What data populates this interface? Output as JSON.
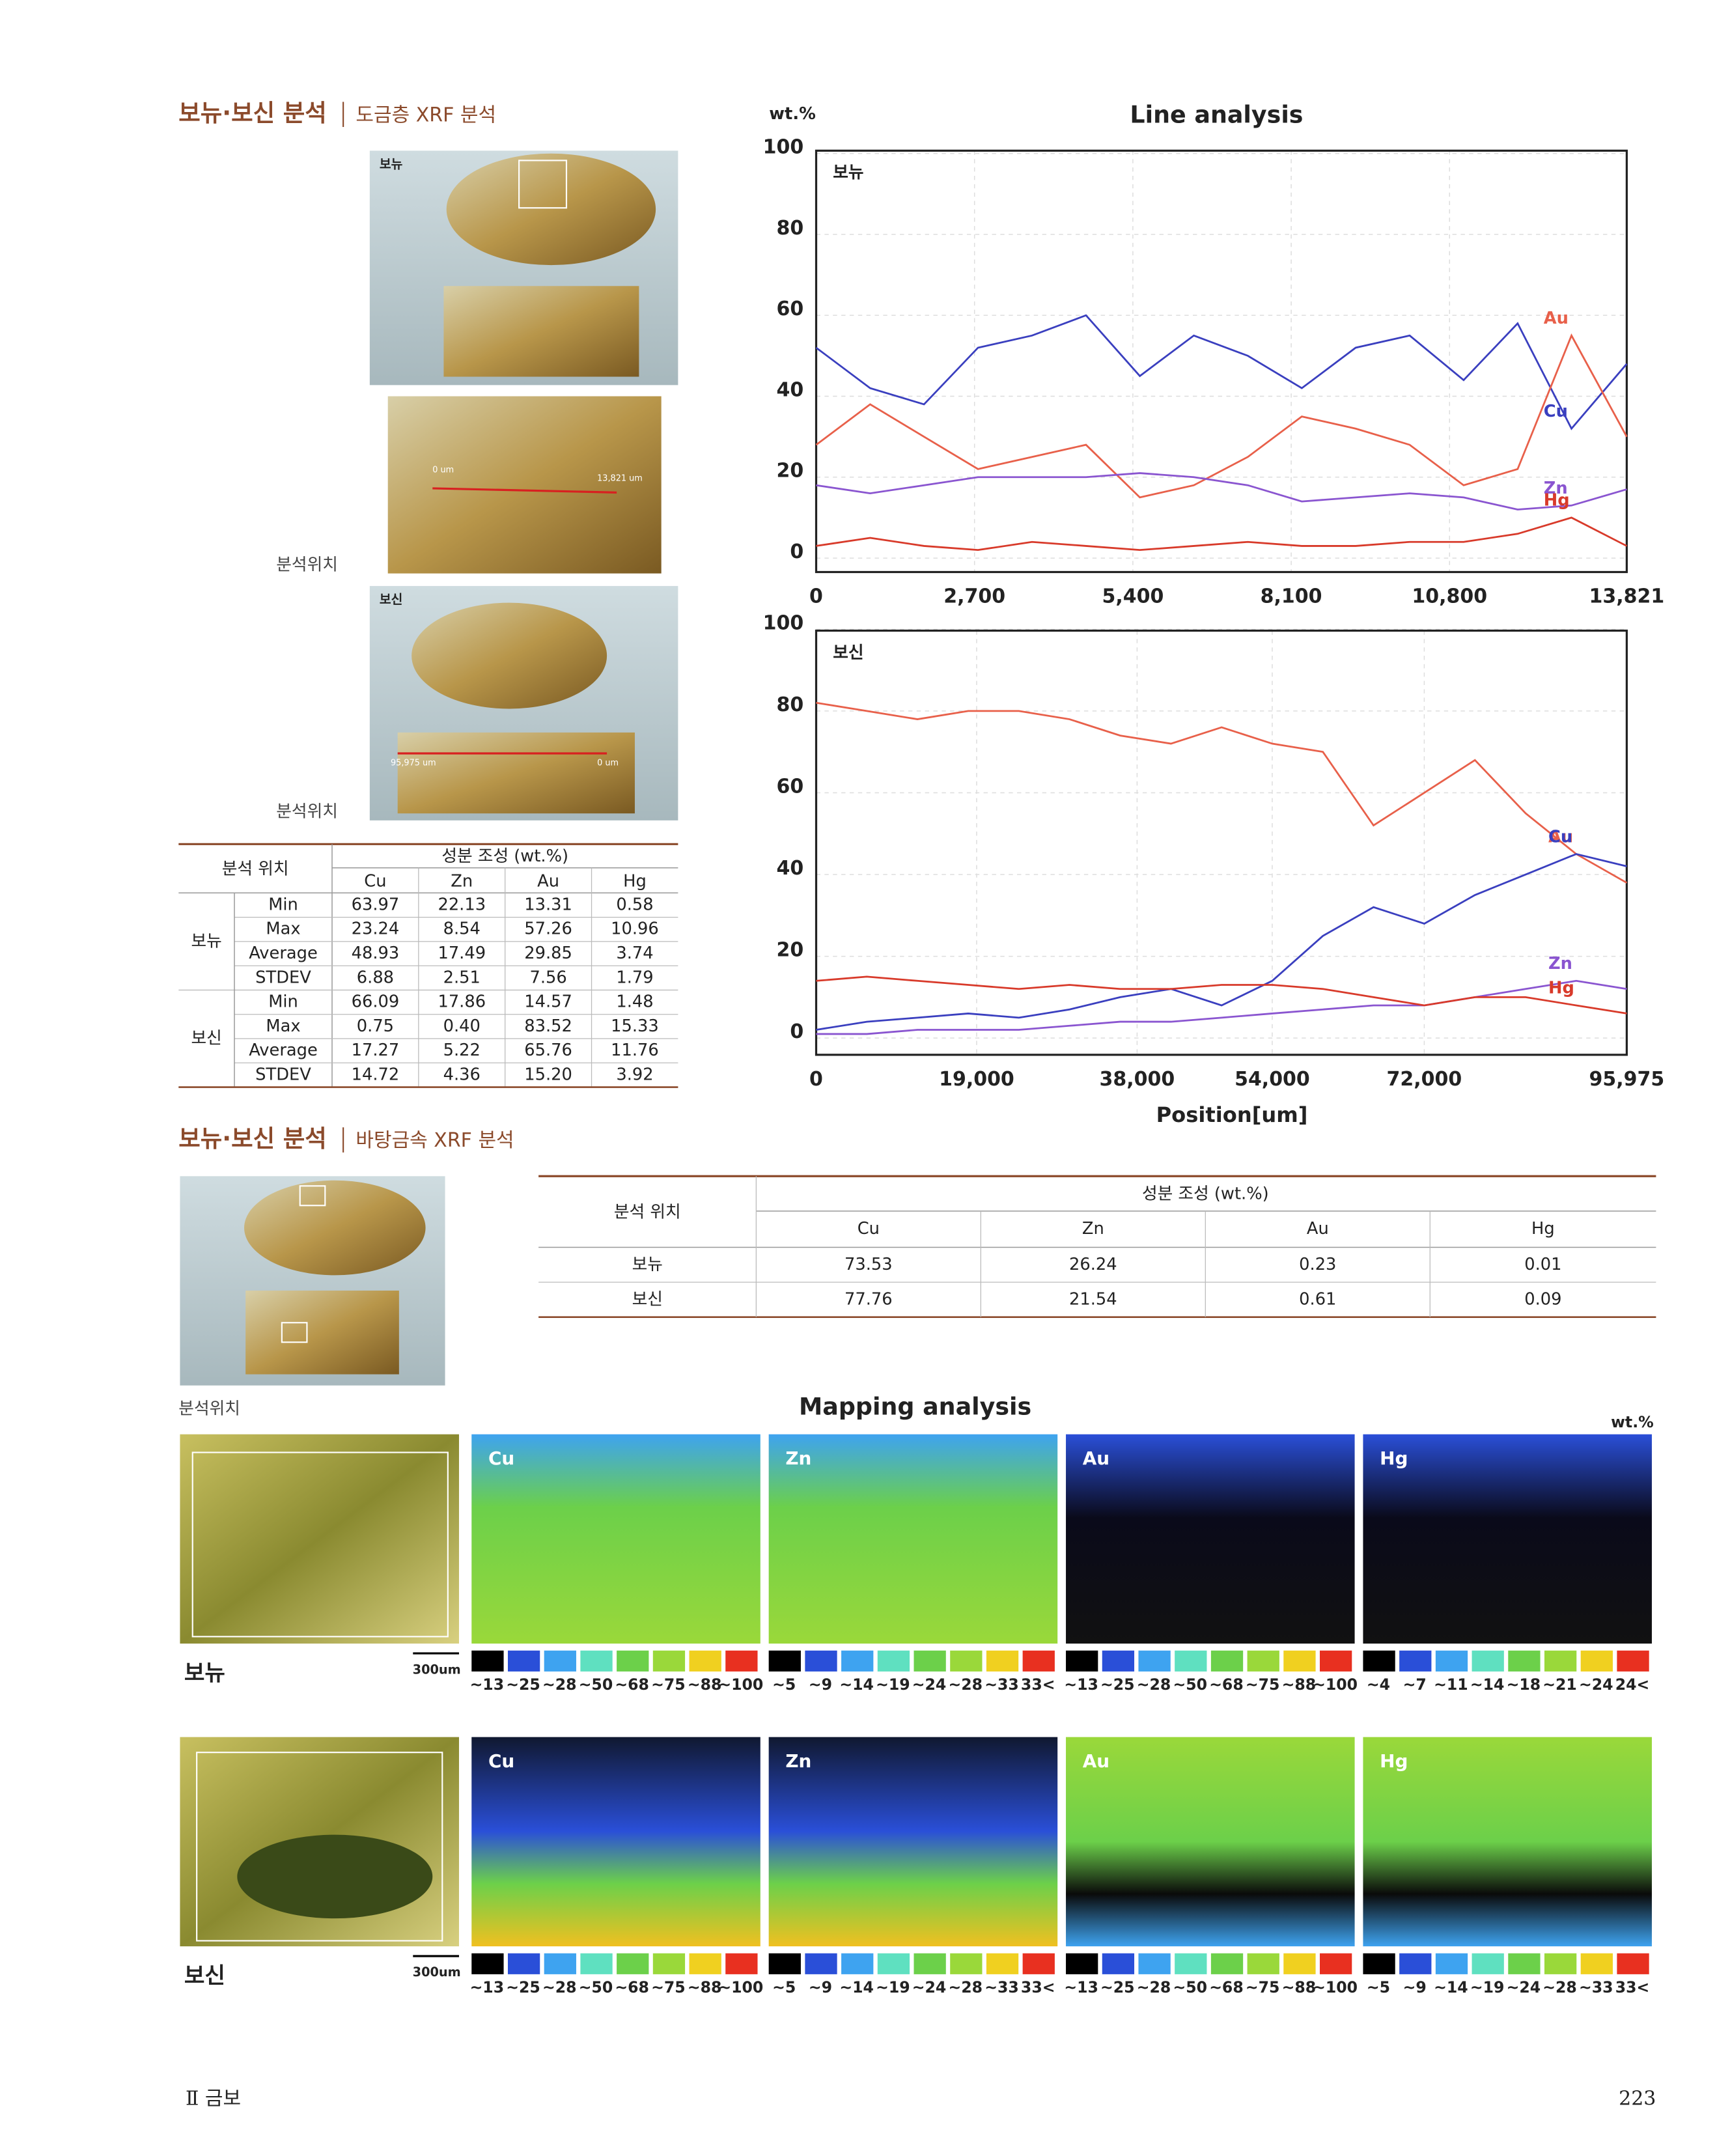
{
  "section1": {
    "title": "보뉴·보신 분석",
    "subtitle": "도금층 XRF 분석"
  },
  "photos": {
    "labels": [
      "보뉴",
      "보신"
    ],
    "position_label": "분석위치",
    "annotations": [
      "0 um",
      "13,821 um",
      "95,975 um",
      "0 um"
    ]
  },
  "table1": {
    "header": [
      "분석 위치",
      "성분 조성 (wt.%)"
    ],
    "columns": [
      "Cu",
      "Zn",
      "Au",
      "Hg"
    ],
    "groups": [
      {
        "name": "보뉴",
        "rows": [
          {
            "stat": "Min",
            "values": [
              "63.97",
              "22.13",
              "13.31",
              "0.58"
            ]
          },
          {
            "stat": "Max",
            "values": [
              "23.24",
              "8.54",
              "57.26",
              "10.96"
            ]
          },
          {
            "stat": "Average",
            "values": [
              "48.93",
              "17.49",
              "29.85",
              "3.74"
            ]
          },
          {
            "stat": "STDEV",
            "values": [
              "6.88",
              "2.51",
              "7.56",
              "1.79"
            ]
          }
        ]
      },
      {
        "name": "보신",
        "rows": [
          {
            "stat": "Min",
            "values": [
              "66.09",
              "17.86",
              "14.57",
              "1.48"
            ]
          },
          {
            "stat": "Max",
            "values": [
              "0.75",
              "0.40",
              "83.52",
              "15.33"
            ]
          },
          {
            "stat": "Average",
            "values": [
              "17.27",
              "5.22",
              "65.76",
              "11.76"
            ]
          },
          {
            "stat": "STDEV",
            "values": [
              "14.72",
              "4.36",
              "15.20",
              "3.92"
            ]
          }
        ]
      }
    ]
  },
  "section2": {
    "title": "보뉴·보신 분석",
    "subtitle": "바탕금속 XRF 분석",
    "position_label": "분석위치"
  },
  "table2": {
    "header": [
      "분석 위치",
      "성분 조성 (wt.%)"
    ],
    "columns": [
      "Cu",
      "Zn",
      "Au",
      "Hg"
    ],
    "rows": [
      [
        "보뉴",
        "73.53",
        "26.24",
        "0.23",
        "0.01"
      ],
      [
        "보신",
        "77.76",
        "21.54",
        "0.61",
        "0.09"
      ]
    ]
  },
  "chart_data": [
    {
      "type": "line",
      "title": "Line analysis",
      "y_label": "wt.%",
      "panel_label": "보뉴",
      "x": [
        0,
        920,
        1840,
        2760,
        3680,
        4600,
        5520,
        6440,
        7360,
        8280,
        9200,
        10120,
        11040,
        11960,
        12880,
        13821
      ],
      "xlim": [
        0,
        13821
      ],
      "xticks": [
        0,
        {
          "value": 2700,
          "label": "2,700"
        },
        {
          "value": 5400,
          "label": "5,400"
        },
        {
          "value": 8100,
          "label": "8,100"
        },
        {
          "value": 10800,
          "label": "10,800"
        },
        {
          "value": 13821,
          "label": "13,821"
        }
      ],
      "ylim": [
        0,
        100
      ],
      "yticks": [
        0,
        20,
        40,
        60,
        80,
        100
      ],
      "grid": true,
      "series": [
        {
          "name": "Cu",
          "color": "#3a3fbf",
          "values": [
            52,
            42,
            38,
            52,
            55,
            60,
            45,
            55,
            50,
            42,
            52,
            55,
            44,
            58,
            32,
            48
          ]
        },
        {
          "name": "Au",
          "color": "#e8604a",
          "values": [
            28,
            38,
            30,
            22,
            25,
            28,
            15,
            18,
            25,
            35,
            32,
            28,
            18,
            22,
            55,
            30
          ]
        },
        {
          "name": "Zn",
          "color": "#8a55d0",
          "values": [
            18,
            16,
            18,
            20,
            20,
            20,
            21,
            20,
            18,
            14,
            15,
            16,
            15,
            12,
            13,
            17
          ]
        },
        {
          "name": "Hg",
          "color": "#d83a2a",
          "values": [
            3,
            5,
            3,
            2,
            4,
            3,
            2,
            3,
            4,
            3,
            3,
            4,
            4,
            6,
            10,
            3
          ]
        }
      ]
    },
    {
      "type": "line",
      "panel_label": "보신",
      "x_label": "Position[um]",
      "x": [
        0,
        6000,
        12000,
        18000,
        24000,
        30000,
        36000,
        42000,
        48000,
        54000,
        60000,
        66000,
        72000,
        78000,
        84000,
        90000,
        95975
      ],
      "xlim": [
        0,
        95975
      ],
      "xticks": [
        0,
        {
          "value": 19000,
          "label": "19,000"
        },
        {
          "value": 38000,
          "label": "38,000"
        },
        {
          "value": 54000,
          "label": "54,000"
        },
        {
          "value": 72000,
          "label": "72,000"
        },
        {
          "value": 95975,
          "label": "95,975"
        }
      ],
      "ylim": [
        0,
        100
      ],
      "yticks": [
        0,
        20,
        40,
        60,
        80,
        100
      ],
      "grid": true,
      "series": [
        {
          "name": "Au",
          "color": "#e8604a",
          "values": [
            82,
            80,
            78,
            80,
            80,
            78,
            74,
            72,
            76,
            72,
            70,
            52,
            60,
            68,
            55,
            45,
            38
          ]
        },
        {
          "name": "Cu",
          "color": "#3a3fbf",
          "values": [
            2,
            4,
            5,
            6,
            5,
            7,
            10,
            12,
            8,
            14,
            25,
            32,
            28,
            35,
            40,
            45,
            42
          ]
        },
        {
          "name": "Zn",
          "color": "#8a55d0",
          "values": [
            1,
            1,
            2,
            2,
            2,
            3,
            4,
            4,
            5,
            6,
            7,
            8,
            8,
            10,
            12,
            14,
            12
          ]
        },
        {
          "name": "Hg",
          "color": "#d83a2a",
          "values": [
            14,
            15,
            14,
            13,
            12,
            13,
            12,
            12,
            13,
            13,
            12,
            10,
            8,
            10,
            10,
            8,
            6
          ]
        }
      ]
    }
  ],
  "mapping": {
    "title": "Mapping analysis",
    "unit": "wt.%",
    "scale_bar": "300um",
    "samples": [
      {
        "name": "보뉴",
        "maps": [
          {
            "element": "Cu",
            "scale": [
              "~13",
              "~25",
              "~28",
              "~50",
              "~68",
              "~75",
              "~88",
              "~100"
            ]
          },
          {
            "element": "Zn",
            "scale": [
              "~5",
              "~9",
              "~14",
              "~19",
              "~24",
              "~28",
              "~33",
              "33<"
            ]
          },
          {
            "element": "Au",
            "scale": [
              "~13",
              "~25",
              "~28",
              "~50",
              "~68",
              "~75",
              "~88",
              "~100"
            ]
          },
          {
            "element": "Hg",
            "scale": [
              "~4",
              "~7",
              "~11",
              "~14",
              "~18",
              "~21",
              "~24",
              "24<"
            ]
          }
        ]
      },
      {
        "name": "보신",
        "maps": [
          {
            "element": "Cu",
            "scale": [
              "~13",
              "~25",
              "~28",
              "~50",
              "~68",
              "~75",
              "~88",
              "~100"
            ]
          },
          {
            "element": "Zn",
            "scale": [
              "~5",
              "~9",
              "~14",
              "~19",
              "~24",
              "~28",
              "~33",
              "33<"
            ]
          },
          {
            "element": "Au",
            "scale": [
              "~13",
              "~25",
              "~28",
              "~50",
              "~68",
              "~75",
              "~88",
              "~100"
            ]
          },
          {
            "element": "Hg",
            "scale": [
              "~5",
              "~9",
              "~14",
              "~19",
              "~24",
              "~28",
              "~33",
              "33<"
            ]
          }
        ]
      }
    ]
  },
  "footer": {
    "section": "Ⅱ 금보",
    "page": "223"
  }
}
